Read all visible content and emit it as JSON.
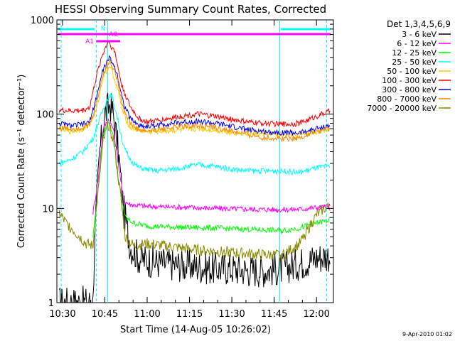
{
  "chart_data": {
    "type": "line",
    "title": "HESSI Observing Summary Count Rates, Corrected",
    "xlabel": "Start Time (14-Aug-05 10:26:02)",
    "ylabel": "Corrected Count Rate (s⁻¹ detector⁻¹)",
    "timestamp": "9-Apr-2010 01:02",
    "y_scale": "log",
    "ylim": [
      1,
      1000
    ],
    "xlim_minutes": [
      10.4667,
      12.1
    ],
    "x_ticks": [
      {
        "value": 10.5,
        "label": "10:30"
      },
      {
        "value": 10.75,
        "label": "10:45"
      },
      {
        "value": 11.0,
        "label": "11:00"
      },
      {
        "value": 11.25,
        "label": "11:15"
      },
      {
        "value": 11.5,
        "label": "11:30"
      },
      {
        "value": 11.75,
        "label": "11:45"
      },
      {
        "value": 12.0,
        "label": "12:00"
      }
    ],
    "y_ticks": [
      {
        "value": 1,
        "label": "1"
      },
      {
        "value": 10,
        "label": "10"
      },
      {
        "value": 100,
        "label": "100"
      },
      {
        "value": 1000,
        "label": "1000"
      }
    ],
    "legend_title": "Det 1,3,4,5,6,9",
    "legend_position": "right",
    "series": [
      {
        "name": "3 - 6 keV",
        "color": "#000000",
        "points": [
          [
            10.48,
            1.0
          ],
          [
            10.6,
            1.0
          ],
          [
            10.68,
            1.0
          ],
          [
            10.69,
            5
          ],
          [
            10.72,
            40
          ],
          [
            10.75,
            100
          ],
          [
            10.78,
            128
          ],
          [
            10.8,
            100
          ],
          [
            10.83,
            40
          ],
          [
            10.86,
            10
          ],
          [
            10.9,
            4
          ],
          [
            10.95,
            3
          ],
          [
            11.0,
            2.8
          ],
          [
            11.1,
            2.6
          ],
          [
            11.2,
            2.5
          ],
          [
            11.3,
            2.4
          ],
          [
            11.4,
            2.3
          ],
          [
            11.5,
            2.3
          ],
          [
            11.6,
            2.2
          ],
          [
            11.7,
            2.2
          ],
          [
            11.8,
            2.3
          ],
          [
            11.9,
            2.6
          ],
          [
            12.0,
            3.0
          ],
          [
            12.08,
            3.2
          ]
        ]
      },
      {
        "name": "6 - 12 keV",
        "color": "#ff00ff",
        "points": [
          [
            10.68,
            9
          ],
          [
            10.71,
            20
          ],
          [
            10.74,
            70
          ],
          [
            10.77,
            88
          ],
          [
            10.8,
            70
          ],
          [
            10.83,
            30
          ],
          [
            10.86,
            12
          ],
          [
            10.9,
            11
          ],
          [
            11.0,
            10.5
          ],
          [
            11.2,
            10.3
          ],
          [
            11.4,
            10
          ],
          [
            11.6,
            9.8
          ],
          [
            11.8,
            9.7
          ],
          [
            11.9,
            9.8
          ],
          [
            12.0,
            10.2
          ],
          [
            12.08,
            10.5
          ]
        ]
      },
      {
        "name": "12 - 25 keV",
        "color": "#00ff00",
        "points": [
          [
            10.68,
            5
          ],
          [
            10.71,
            15
          ],
          [
            10.74,
            60
          ],
          [
            10.77,
            85
          ],
          [
            10.8,
            60
          ],
          [
            10.83,
            20
          ],
          [
            10.87,
            8
          ],
          [
            10.92,
            7
          ],
          [
            11.0,
            6.5
          ],
          [
            11.2,
            6.3
          ],
          [
            11.4,
            6.2
          ],
          [
            11.6,
            6.0
          ],
          [
            11.8,
            5.8
          ],
          [
            11.9,
            6.2
          ],
          [
            12.0,
            7.0
          ],
          [
            12.08,
            7.5
          ]
        ]
      },
      {
        "name": "25 - 50 keV",
        "color": "#00ffff",
        "points": [
          [
            10.48,
            30
          ],
          [
            10.55,
            33
          ],
          [
            10.62,
            40
          ],
          [
            10.68,
            55
          ],
          [
            10.72,
            90
          ],
          [
            10.76,
            140
          ],
          [
            10.79,
            160
          ],
          [
            10.82,
            100
          ],
          [
            10.86,
            45
          ],
          [
            10.9,
            33
          ],
          [
            10.95,
            27
          ],
          [
            11.05,
            25
          ],
          [
            11.15,
            26
          ],
          [
            11.25,
            28
          ],
          [
            11.3,
            29
          ],
          [
            11.4,
            28
          ],
          [
            11.5,
            26
          ],
          [
            11.6,
            25
          ],
          [
            11.7,
            25
          ],
          [
            11.8,
            25
          ],
          [
            11.9,
            24
          ],
          [
            12.0,
            27
          ],
          [
            12.08,
            28
          ]
        ]
      },
      {
        "name": "50 - 100 keV",
        "color": "#ffcc00",
        "points": [
          [
            10.48,
            70
          ],
          [
            10.55,
            65
          ],
          [
            10.62,
            70
          ],
          [
            10.66,
            78
          ],
          [
            10.7,
            110
          ],
          [
            10.74,
            250
          ],
          [
            10.78,
            330
          ],
          [
            10.82,
            200
          ],
          [
            10.86,
            100
          ],
          [
            10.9,
            72
          ],
          [
            11.0,
            65
          ],
          [
            11.1,
            66
          ],
          [
            11.2,
            68
          ],
          [
            11.3,
            70
          ],
          [
            11.4,
            68
          ],
          [
            11.5,
            64
          ],
          [
            11.6,
            62
          ],
          [
            11.7,
            62
          ],
          [
            11.8,
            60
          ],
          [
            11.9,
            60
          ],
          [
            12.0,
            65
          ],
          [
            12.08,
            70
          ]
        ]
      },
      {
        "name": "100 - 300 keV",
        "color": "#ff0000",
        "points": [
          [
            10.48,
            110
          ],
          [
            10.55,
            108
          ],
          [
            10.62,
            110
          ],
          [
            10.66,
            118
          ],
          [
            10.7,
            250
          ],
          [
            10.73,
            400
          ],
          [
            10.77,
            600
          ],
          [
            10.81,
            450
          ],
          [
            10.85,
            200
          ],
          [
            10.9,
            120
          ],
          [
            10.95,
            90
          ],
          [
            11.0,
            82
          ],
          [
            11.1,
            88
          ],
          [
            11.2,
            95
          ],
          [
            11.3,
            100
          ],
          [
            11.4,
            95
          ],
          [
            11.5,
            88
          ],
          [
            11.6,
            82
          ],
          [
            11.7,
            80
          ],
          [
            11.8,
            78
          ],
          [
            11.9,
            80
          ],
          [
            12.0,
            95
          ],
          [
            12.08,
            108
          ]
        ]
      },
      {
        "name": "300 - 800 keV",
        "color": "#0000ff",
        "points": [
          [
            10.48,
            80
          ],
          [
            10.55,
            75
          ],
          [
            10.62,
            78
          ],
          [
            10.66,
            82
          ],
          [
            10.7,
            150
          ],
          [
            10.74,
            300
          ],
          [
            10.78,
            400
          ],
          [
            10.82,
            280
          ],
          [
            10.86,
            130
          ],
          [
            10.9,
            90
          ],
          [
            10.95,
            76
          ],
          [
            11.0,
            74
          ],
          [
            11.1,
            78
          ],
          [
            11.2,
            82
          ],
          [
            11.3,
            84
          ],
          [
            11.4,
            80
          ],
          [
            11.5,
            74
          ],
          [
            11.6,
            68
          ],
          [
            11.7,
            65
          ],
          [
            11.8,
            64
          ],
          [
            11.9,
            63
          ],
          [
            12.0,
            70
          ],
          [
            12.08,
            76
          ]
        ]
      },
      {
        "name": "800 - 7000 keV",
        "color": "#ff8800",
        "points": [
          [
            10.48,
            72
          ],
          [
            10.55,
            70
          ],
          [
            10.62,
            72
          ],
          [
            10.66,
            76
          ],
          [
            10.7,
            130
          ],
          [
            10.74,
            270
          ],
          [
            10.78,
            370
          ],
          [
            10.82,
            250
          ],
          [
            10.86,
            115
          ],
          [
            10.9,
            80
          ],
          [
            10.95,
            68
          ],
          [
            11.0,
            66
          ],
          [
            11.1,
            70
          ],
          [
            11.2,
            74
          ],
          [
            11.3,
            76
          ],
          [
            11.4,
            72
          ],
          [
            11.5,
            66
          ],
          [
            11.6,
            60
          ],
          [
            11.7,
            56
          ],
          [
            11.8,
            55
          ],
          [
            11.9,
            56
          ],
          [
            12.0,
            65
          ],
          [
            12.08,
            70
          ]
        ]
      },
      {
        "name": "7000 - 20000 keV",
        "color": "#8b8b00",
        "points": [
          [
            10.48,
            9
          ],
          [
            10.52,
            7
          ],
          [
            10.56,
            6
          ],
          [
            10.6,
            5
          ],
          [
            10.64,
            4.2
          ],
          [
            10.68,
            4
          ],
          [
            10.71,
            15
          ],
          [
            10.74,
            50
          ],
          [
            10.77,
            78
          ],
          [
            10.8,
            55
          ],
          [
            10.84,
            15
          ],
          [
            10.87,
            5
          ],
          [
            10.92,
            4
          ],
          [
            11.0,
            4.2
          ],
          [
            11.1,
            4.0
          ],
          [
            11.2,
            3.8
          ],
          [
            11.3,
            3.6
          ],
          [
            11.4,
            3.5
          ],
          [
            11.5,
            3.4
          ],
          [
            11.6,
            3.3
          ],
          [
            11.7,
            3.2
          ],
          [
            11.8,
            3.2
          ],
          [
            11.9,
            4.2
          ],
          [
            11.95,
            6
          ],
          [
            12.0,
            8.5
          ],
          [
            12.05,
            10
          ],
          [
            12.08,
            10.5
          ]
        ]
      }
    ],
    "annotations": {
      "markers": [
        {
          "label": "N",
          "color": "#00ffff"
        },
        {
          "label": "A1",
          "color": "#ff00ff"
        },
        {
          "label": "A0",
          "color": "#ff00ff"
        }
      ],
      "dashed_lines_minutes": [
        10.492,
        10.7,
        12.06
      ],
      "solid_lines_minutes": [
        10.7667,
        11.783
      ]
    }
  }
}
